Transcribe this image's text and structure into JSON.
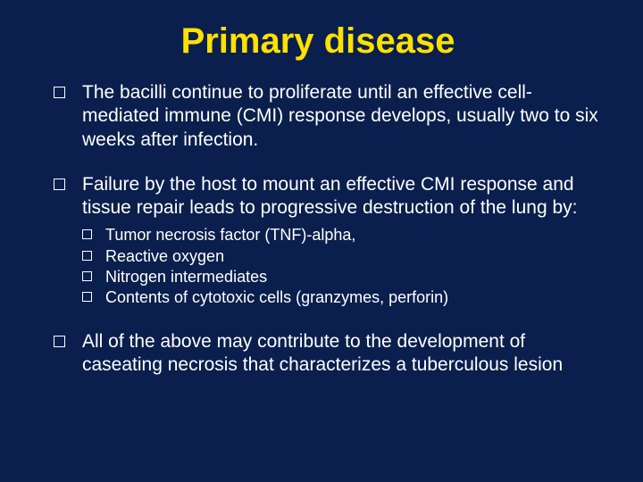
{
  "slide": {
    "title": "Primary disease",
    "title_color": "#ffe100",
    "title_fontsize": 40,
    "background_color": "#0a1f4d",
    "body_color": "#ffffff",
    "body_fontsize": 21,
    "sub_fontsize": 18,
    "font_family": "Comic Sans MS",
    "bullets": [
      {
        "text": "The bacilli continue to proliferate until an effective cell-mediated immune (CMI) response develops, usually two to six weeks after infection."
      },
      {
        "text": "Failure by the host to mount an effective CMI response and tissue repair leads to progressive destruction of the lung by:",
        "sub": [
          "Tumor necrosis factor (TNF)-alpha,",
          "Reactive oxygen",
          "Nitrogen intermediates",
          "Contents of cytotoxic cells (granzymes, perforin)"
        ]
      },
      {
        "text": "All of the above may contribute to the development of caseating necrosis that characterizes a tuberculous lesion"
      }
    ]
  }
}
